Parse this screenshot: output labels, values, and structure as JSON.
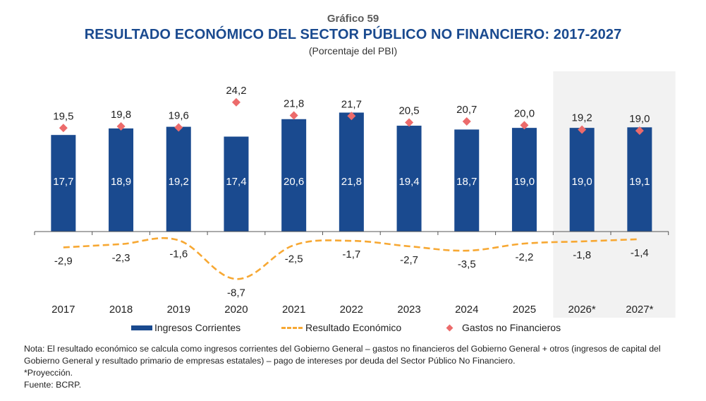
{
  "header": {
    "chart_number": "Gráfico 59",
    "title": "RESULTADO ECONÓMICO DEL SECTOR PÚBLICO NO FINANCIERO: 2017-2027",
    "subtitle": "(Porcentaje del PBI)"
  },
  "colors": {
    "bars": "#1a4a8f",
    "line": "#f7a833",
    "markers": "#ec6b6b",
    "projection_shade": "#f2f2f2",
    "title": "#1a4a8f"
  },
  "chart_data": {
    "type": "bar",
    "title": "RESULTADO ECONÓMICO DEL SECTOR PÚBLICO NO FINANCIERO: 2017-2027",
    "subtitle": "(Porcentaje del PBI)",
    "xlabel": "",
    "ylabel": "",
    "ylim": [
      -9,
      25
    ],
    "grid": false,
    "legend_position": "bottom",
    "categories": [
      "2017",
      "2018",
      "2019",
      "2020",
      "2021",
      "2022",
      "2023",
      "2024",
      "2025",
      "2026*",
      "2027*"
    ],
    "projection_categories": [
      "2026*",
      "2027*"
    ],
    "series": [
      {
        "name": "Ingresos Corrientes",
        "type": "bar",
        "values": [
          17.7,
          18.9,
          19.2,
          17.4,
          20.6,
          21.8,
          19.4,
          18.7,
          19.0,
          19.0,
          19.1
        ],
        "labels": [
          "17,7",
          "18,9",
          "19,2",
          "17,4",
          "20,6",
          "21,8",
          "19,4",
          "18,7",
          "19,0",
          "19,0",
          "19,1"
        ]
      },
      {
        "name": "Resultado Económico",
        "type": "line",
        "style": "dashed",
        "values": [
          -2.9,
          -2.3,
          -1.6,
          -8.7,
          -2.5,
          -1.7,
          -2.7,
          -3.5,
          -2.2,
          -1.8,
          -1.4
        ],
        "labels": [
          "-2,9",
          "-2,3",
          "-1,6",
          "-8,7",
          "-2,5",
          "-1,7",
          "-2,7",
          "-3,5",
          "-2,2",
          "-1,8",
          "-1,4"
        ]
      },
      {
        "name": "Gastos no Financieros",
        "type": "scatter",
        "marker": "diamond",
        "values": [
          19.5,
          19.8,
          19.6,
          24.2,
          21.8,
          21.7,
          20.5,
          20.7,
          20.0,
          19.2,
          19.0
        ],
        "labels": [
          "19,5",
          "19,8",
          "19,6",
          "24,2",
          "21,8",
          "21,7",
          "20,5",
          "20,7",
          "20,0",
          "19,2",
          "19,0"
        ]
      }
    ]
  },
  "legend": {
    "items": [
      {
        "label": "Ingresos Corrientes",
        "symbol": "bar"
      },
      {
        "label": "Resultado Económico",
        "symbol": "dashed-line"
      },
      {
        "label": "Gastos no Financieros",
        "symbol": "diamond"
      }
    ]
  },
  "notes": {
    "nota": "Nota: El resultado económico se calcula como ingresos corrientes del Gobierno General – gastos no financieros del Gobierno General + otros (ingresos de capital del Gobierno General y resultado primario de empresas estatales) – pago de intereses por deuda del Sector Público No Financiero.",
    "projection": "*Proyección.",
    "source": "Fuente: BCRP."
  }
}
